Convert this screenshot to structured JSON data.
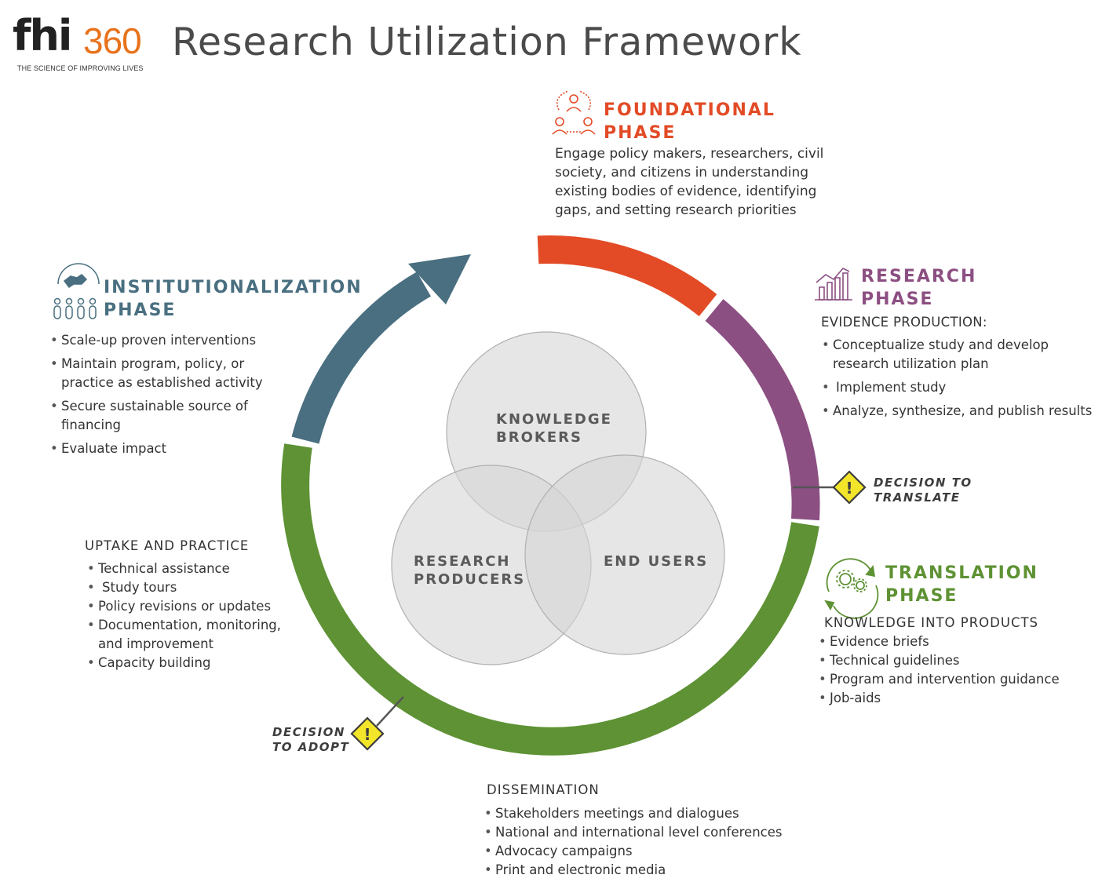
{
  "logo": {
    "main": "fhi",
    "number": "360",
    "tagline": "THE SCIENCE OF IMPROVING LIVES"
  },
  "title": "Research Utilization Framework",
  "colors": {
    "foundational": "#e24b26",
    "research": "#8c4f82",
    "translation": "#5e9234",
    "institutional": "#496f80",
    "warning": "#f2e52a",
    "circle_fill": "#dcdcdc"
  },
  "foundational": {
    "icon": "people-network-icon",
    "title1": "FOUNDATIONAL",
    "title2": "PHASE",
    "body": [
      "Engage policy makers, researchers, civil",
      "society, and citizens in understanding",
      "existing bodies of evidence, identifying",
      "gaps, and setting research priorities"
    ]
  },
  "research": {
    "icon": "bar-chart-icon",
    "title1": "RESEARCH",
    "title2": "PHASE",
    "subhead": "EVIDENCE PRODUCTION:",
    "items": [
      "Conceptualize study and develop",
      "research utilization plan",
      "Implement study",
      "Analyze, synthesize, and publish results"
    ]
  },
  "translation": {
    "icon": "gears-cycle-icon",
    "title1": "TRANSLATION",
    "title2": "PHASE",
    "subhead": "KNOWLEDGE INTO PRODUCTS",
    "items": [
      "Evidence briefs",
      "Technical guidelines",
      "Program and intervention guidance",
      "Job-aids"
    ]
  },
  "institutional": {
    "icon": "population-map-icon",
    "title1": "INSTITUTIONALIZATION",
    "title2": "PHASE",
    "items": [
      "Scale-up proven interventions",
      "Maintain program, policy, or",
      "practice as established activity",
      "Secure sustainable source of",
      "financing",
      "Evaluate impact"
    ]
  },
  "uptake": {
    "subhead": "UPTAKE AND PRACTICE",
    "items": [
      "Technical assistance",
      "Study tours",
      "Policy revisions or updates",
      "Documentation, monitoring,",
      "and improvement",
      "Capacity building"
    ]
  },
  "dissemination": {
    "subhead": "DISSEMINATION",
    "items": [
      "Stakeholders meetings and dialogues",
      "National and international level conferences",
      "Advocacy campaigns",
      "Print and electronic media"
    ]
  },
  "decisions": {
    "translate": [
      "DECISION TO",
      "TRANSLATE"
    ],
    "adopt": [
      "DECISION",
      "TO ADOPT"
    ],
    "mark": "!"
  },
  "venn": {
    "brokers": [
      "KNOWLEDGE",
      "BROKERS"
    ],
    "producers": [
      "RESEARCH",
      "PRODUCERS"
    ],
    "users": "END USERS"
  }
}
